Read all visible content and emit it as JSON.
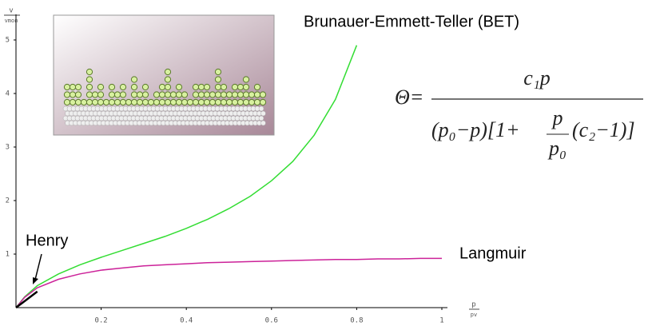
{
  "chart_data": {
    "type": "line",
    "x": [
      0,
      0.02,
      0.05,
      0.1,
      0.15,
      0.2,
      0.25,
      0.3,
      0.35,
      0.4,
      0.45,
      0.5,
      0.55,
      0.6,
      0.65,
      0.7,
      0.75,
      0.8,
      0.85,
      0.9,
      0.95,
      1
    ],
    "series": [
      {
        "name": "Brunauer-Emmett-Teller (BET)",
        "color": "#33dd33",
        "values": [
          0,
          0.2,
          0.41,
          0.63,
          0.8,
          0.94,
          1.07,
          1.2,
          1.33,
          1.48,
          1.65,
          1.85,
          2.08,
          2.37,
          2.73,
          3.22,
          3.89,
          4.9,
          null,
          null,
          null,
          null
        ]
      },
      {
        "name": "Langmuir",
        "color": "#cc2299",
        "values": [
          0,
          0.19,
          0.37,
          0.53,
          0.63,
          0.7,
          0.74,
          0.78,
          0.8,
          0.82,
          0.84,
          0.85,
          0.86,
          0.87,
          0.88,
          0.89,
          0.9,
          0.9,
          0.91,
          0.91,
          0.92,
          0.92
        ]
      },
      {
        "name": "Henry",
        "color": "#000000",
        "values": [
          0,
          0.12,
          0.3,
          null,
          null,
          null,
          null,
          null,
          null,
          null,
          null,
          null,
          null,
          null,
          null,
          null,
          null,
          null,
          null,
          null,
          null,
          null
        ]
      }
    ],
    "xlim": [
      0,
      1
    ],
    "ylim": [
      0,
      5.5
    ],
    "xticks": [
      0.2,
      0.4,
      0.6,
      0.8,
      1
    ],
    "yticks": [
      1,
      2,
      3,
      4,
      5
    ],
    "x_label": {
      "num": "p",
      "den": "pv"
    },
    "y_label": {
      "num": "v",
      "den": "vmon"
    }
  },
  "formula": {
    "lhs": "Θ=",
    "numerator": "c₁p",
    "den_left": "(p₀−p)[1+",
    "frac_num": "p",
    "frac_den": "p₀",
    "den_right": "(c₂−1)]"
  }
}
